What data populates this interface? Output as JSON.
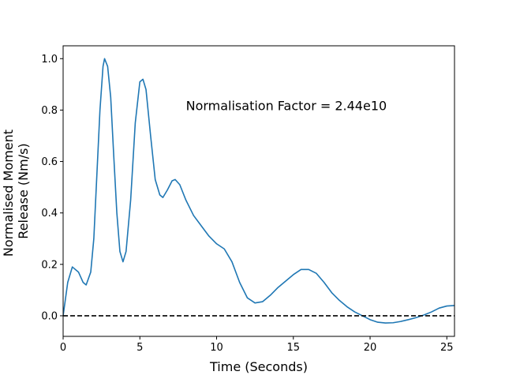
{
  "chart_data": {
    "type": "line",
    "xlabel": "Time (Seconds)",
    "ylabel": [
      "Normalised Moment",
      "Release (Nm/s)"
    ],
    "annotation": {
      "text": "Normalisation Factor = 2.44e10",
      "x": 8,
      "y": 0.8
    },
    "x": [
      0,
      0.3,
      0.6,
      1.0,
      1.3,
      1.5,
      1.8,
      2.0,
      2.2,
      2.4,
      2.6,
      2.7,
      2.9,
      3.1,
      3.3,
      3.5,
      3.7,
      3.9,
      4.1,
      4.4,
      4.7,
      5.0,
      5.2,
      5.4,
      5.7,
      6.0,
      6.3,
      6.5,
      6.8,
      7.1,
      7.3,
      7.6,
      8.0,
      8.5,
      9.0,
      9.5,
      10.0,
      10.5,
      11.0,
      11.5,
      12.0,
      12.5,
      13.0,
      13.5,
      14.0,
      14.5,
      15.0,
      15.5,
      16.0,
      16.5,
      17.0,
      17.5,
      18.0,
      18.5,
      19.0,
      19.5,
      20.0,
      20.5,
      21.0,
      21.5,
      22.0,
      22.5,
      23.0,
      23.5,
      24.0,
      24.5,
      25.0,
      25.5
    ],
    "series": [
      {
        "color": "#1f77b4",
        "values": [
          0.0,
          0.13,
          0.19,
          0.17,
          0.13,
          0.12,
          0.17,
          0.3,
          0.55,
          0.8,
          0.97,
          1.0,
          0.97,
          0.85,
          0.62,
          0.4,
          0.25,
          0.21,
          0.25,
          0.45,
          0.75,
          0.91,
          0.92,
          0.88,
          0.7,
          0.53,
          0.47,
          0.46,
          0.49,
          0.525,
          0.53,
          0.51,
          0.45,
          0.39,
          0.35,
          0.31,
          0.28,
          0.26,
          0.21,
          0.13,
          0.07,
          0.05,
          0.055,
          0.08,
          0.11,
          0.135,
          0.16,
          0.18,
          0.18,
          0.165,
          0.13,
          0.09,
          0.06,
          0.035,
          0.015,
          0.0,
          -0.015,
          -0.025,
          -0.028,
          -0.027,
          -0.022,
          -0.015,
          -0.007,
          0.003,
          0.015,
          0.03,
          0.038,
          0.04
        ]
      }
    ],
    "hline": {
      "value": 0,
      "color": "#000000",
      "style": "dashed"
    },
    "xlim": [
      0,
      25.5
    ],
    "ylim": [
      -0.08,
      1.05
    ],
    "xticks": [
      0,
      5,
      10,
      15,
      20,
      25
    ],
    "yticks": [
      {
        "value": 0,
        "label": "0.0"
      },
      {
        "value": 0.2,
        "label": "0.2"
      },
      {
        "value": 0.4,
        "label": "0.4"
      },
      {
        "value": 0.6,
        "label": "0.6"
      },
      {
        "value": 0.8,
        "label": "0.8"
      },
      {
        "value": 1,
        "label": "1.0"
      }
    ],
    "grid": false
  }
}
